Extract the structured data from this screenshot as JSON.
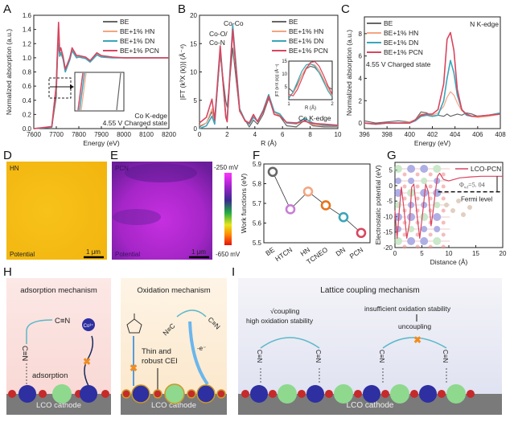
{
  "panel_labels": {
    "A": "A",
    "B": "B",
    "C": "C",
    "D": "D",
    "E": "E",
    "F": "F",
    "G": "G",
    "H": "H",
    "I": "I"
  },
  "chart_data": [
    {
      "id": "A",
      "type": "line",
      "xlabel": "Energy (eV)",
      "ylabel": "Normalized absorption (a.u.)",
      "xlim": [
        7600,
        8200
      ],
      "ylim": [
        0,
        1.6
      ],
      "xticks": [
        7600,
        7700,
        7800,
        7900,
        8000,
        8100,
        8200
      ],
      "yticks": [
        0.0,
        0.2,
        0.4,
        0.6,
        0.8,
        1.0,
        1.2,
        1.4,
        1.6
      ],
      "annotations": [
        "Co K-edge",
        "4.55 V Charged state"
      ],
      "legend_position": "top-right",
      "x": [
        7600,
        7680,
        7700,
        7705,
        7710,
        7715,
        7720,
        7730,
        7740,
        7760,
        7770,
        7790,
        7800,
        7830,
        7850,
        7880,
        7900,
        7950,
        8000,
        8100,
        8200
      ],
      "series": [
        {
          "name": "BE",
          "color": "#666666",
          "values": [
            0,
            0.02,
            0.45,
            0.95,
            1.25,
            1.02,
            1.06,
            1.0,
            0.83,
            0.98,
            1.1,
            1.01,
            1.02,
            1.0,
            0.95,
            1.05,
            1.02,
            1.0,
            1.0,
            1.0,
            1.0
          ]
        },
        {
          "name": "BE+1% HN",
          "color": "#f4a582",
          "values": [
            0,
            0.02,
            0.55,
            1.05,
            1.35,
            1.05,
            1.08,
            1.0,
            0.82,
            0.99,
            1.12,
            1.02,
            1.02,
            1.0,
            0.95,
            1.06,
            1.02,
            1.0,
            1.0,
            1.0,
            1.0
          ]
        },
        {
          "name": "BE+1% DN",
          "color": "#3aa6b9",
          "values": [
            0,
            0.02,
            0.6,
            1.05,
            1.2,
            1.04,
            1.07,
            0.98,
            0.8,
            0.97,
            1.1,
            1.0,
            1.01,
            0.99,
            0.94,
            1.04,
            1.01,
            1.0,
            1.0,
            1.0,
            1.0
          ]
        },
        {
          "name": "BE+1% PCN",
          "color": "#d9455f",
          "values": [
            0,
            0.03,
            0.62,
            1.1,
            1.5,
            1.08,
            1.14,
            1.02,
            0.84,
            1.0,
            1.14,
            1.03,
            1.03,
            1.01,
            0.96,
            1.07,
            1.03,
            1.01,
            1.0,
            1.0,
            1.0
          ]
        }
      ]
    },
    {
      "id": "B",
      "type": "line",
      "xlabel": "R (Å)",
      "ylabel": "|FT (k³X (k))| (Å⁻⁴)",
      "xlim": [
        0,
        10
      ],
      "ylim": [
        0,
        20
      ],
      "xticks": [
        0,
        2,
        4,
        6,
        8,
        10
      ],
      "yticks": [
        0,
        5,
        10,
        15,
        20
      ],
      "annotations": [
        "Co-Co",
        "Co-O/",
        "Co-N",
        "Co K-edge"
      ],
      "legend_position": "top-right",
      "x": [
        0,
        0.5,
        0.9,
        1.1,
        1.5,
        1.9,
        2.0,
        2.4,
        2.9,
        3.3,
        3.6,
        3.9,
        4.2,
        4.6,
        5.0,
        5.4,
        5.8,
        6.3,
        7.0,
        7.6,
        8.2,
        9,
        10
      ],
      "series": [
        {
          "name": "BE",
          "color": "#666666",
          "values": [
            0.3,
            1,
            3,
            1.2,
            13,
            4.8,
            3.8,
            14.2,
            3,
            1.5,
            0.3,
            1.5,
            0.8,
            2.5,
            5.3,
            3,
            2.2,
            0.5,
            0.3,
            1.5,
            0.5,
            0.3,
            0.3
          ]
        },
        {
          "name": "BE+1% HN",
          "color": "#f4a582",
          "values": [
            0.5,
            1,
            3.5,
            1,
            13.5,
            2.5,
            2,
            17,
            3,
            1.5,
            1,
            2.2,
            1.2,
            3,
            5.6,
            2.8,
            2.4,
            1,
            0.8,
            1.4,
            0.7,
            0.5,
            0.4
          ]
        },
        {
          "name": "BE+1% DN",
          "color": "#3aa6b9",
          "values": [
            0,
            0.5,
            2.2,
            0.8,
            14,
            2.2,
            1.5,
            18.3,
            3.5,
            1.4,
            0.8,
            2,
            1.3,
            3.2,
            6,
            3,
            2.6,
            1,
            0.9,
            1.8,
            1,
            0.6,
            0.5
          ]
        },
        {
          "name": "BE+1% PCN",
          "color": "#d9455f",
          "values": [
            1,
            2,
            5.2,
            1.5,
            14.6,
            2,
            1.2,
            17.5,
            3.2,
            1.3,
            1,
            2.5,
            1.2,
            3,
            5.7,
            2.5,
            2.2,
            1.1,
            1,
            1.3,
            0.9,
            0.8,
            0.6
          ]
        }
      ],
      "inset": {
        "xlabel": "R (Å)",
        "ylabel": "|FT (k³X (k))| (Å⁻⁴)",
        "xlim": [
          1,
          2
        ],
        "ylim": [
          0,
          15
        ],
        "xticks": [
          1,
          2
        ],
        "yticks": [
          5,
          10,
          15
        ],
        "x": [
          1,
          1.1,
          1.2,
          1.3,
          1.4,
          1.5,
          1.6,
          1.7,
          1.8,
          1.9,
          2
        ],
        "series": [
          {
            "name": "BE",
            "color": "#666666",
            "values": [
              4.5,
              3,
              6,
              9.5,
              12,
              13,
              12.5,
              10.5,
              7.5,
              5,
              4
            ]
          },
          {
            "name": "BE+1% HN",
            "color": "#f4a582",
            "values": [
              1.5,
              2.5,
              5.5,
              9.5,
              12.5,
              13.8,
              13.5,
              11.5,
              8,
              4.5,
              1.5
            ]
          },
          {
            "name": "BE+1% DN",
            "color": "#3aa6b9",
            "values": [
              0.5,
              3,
              7,
              11,
              13.5,
              14,
              13,
              10.5,
              7,
              3.5,
              1
            ]
          },
          {
            "name": "BE+1% PCN",
            "color": "#d9455f",
            "values": [
              2,
              1.5,
              4,
              8,
              12,
              14.5,
              14.8,
              13,
              9.5,
              5.5,
              2
            ]
          }
        ]
      }
    },
    {
      "id": "C",
      "type": "line",
      "xlabel": "Energy (eV)",
      "ylabel": "Normalized absorption (a.u.)",
      "xlim": [
        396,
        408
      ],
      "ylim": [
        -0.5,
        9.5
      ],
      "xticks": [
        396,
        398,
        400,
        402,
        404,
        406,
        408
      ],
      "yticks": [
        0,
        2,
        4,
        6,
        8
      ],
      "annotations": [
        "N K-edge",
        "4.55 V Charged state"
      ],
      "legend_position": "top-left",
      "x": [
        396,
        397,
        398,
        399,
        400,
        400.5,
        401,
        401.5,
        402,
        402.5,
        403,
        403.3,
        403.6,
        403.9,
        404.2,
        404.6,
        405,
        405.5,
        406,
        407,
        408
      ],
      "series": [
        {
          "name": "BE",
          "color": "#666666",
          "values": [
            0.2,
            0,
            0.1,
            0.2,
            0.1,
            0.3,
            1.0,
            0.9,
            0.6,
            0.7,
            0.6,
            0.8,
            0.6,
            0.7,
            0.8,
            0.7,
            0.9,
            0.8,
            0.6,
            0.7,
            0.8
          ]
        },
        {
          "name": "BE+1% HN",
          "color": "#f4a582",
          "values": [
            0,
            -0.1,
            0,
            0,
            0.1,
            0.3,
            0.8,
            0.8,
            0.7,
            0.9,
            1.5,
            2.3,
            2.8,
            2.5,
            1.8,
            1.1,
            0.8,
            0.6,
            0.5,
            0.6,
            0.8
          ]
        },
        {
          "name": "BE+1% DN",
          "color": "#3aa6b9",
          "values": [
            0,
            -0.1,
            0,
            0,
            0,
            0.2,
            0.6,
            0.7,
            0.6,
            0.7,
            2.0,
            4.0,
            5.6,
            4.5,
            2.5,
            1.2,
            0.7,
            0.6,
            0.6,
            0.7,
            0.9
          ]
        },
        {
          "name": "BE+1% PCN",
          "color": "#d9455f",
          "values": [
            0,
            -0.1,
            0,
            0,
            0,
            0.3,
            0.7,
            0.8,
            0.8,
            1.2,
            3.5,
            7.5,
            8.1,
            6.5,
            3.0,
            1.2,
            0.8,
            0.6,
            0.6,
            0.7,
            0.8
          ]
        }
      ]
    },
    {
      "id": "F",
      "type": "scatter",
      "xlabel": "",
      "ylabel": "Work functions (eV)",
      "ylim": [
        5.5,
        5.9
      ],
      "yticks": [
        5.5,
        5.6,
        5.7,
        5.8,
        5.9
      ],
      "categories": [
        "BE",
        "HTCN",
        "HN",
        "TCNEO",
        "DN",
        "PCN"
      ],
      "values": [
        5.86,
        5.67,
        5.76,
        5.69,
        5.63,
        5.55
      ],
      "colors": [
        "#666666",
        "#c77dd6",
        "#f4a582",
        "#e8731a",
        "#3aa6b9",
        "#d9455f"
      ]
    },
    {
      "id": "G",
      "type": "line",
      "xlabel": "Distance (Å)",
      "ylabel": "Electrostatic potential (eV)",
      "xlim": [
        0,
        20
      ],
      "ylim": [
        -20,
        7.5
      ],
      "xticks": [
        0,
        5,
        10,
        15,
        20
      ],
      "yticks": [
        -20,
        -15,
        -10,
        -5,
        0,
        5
      ],
      "legend_position": "top-right",
      "annotations": [
        "Φ",
        "wf",
        "=5. 04",
        "Fermi level"
      ],
      "fermi_level": -2,
      "x": [
        0,
        0.4,
        0.8,
        1.2,
        1.7,
        2.2,
        2.7,
        3.1,
        3.5,
        4.0,
        4.6,
        5.2,
        5.7,
        6.2,
        6.7,
        7.1,
        7.5,
        7.9,
        8.3,
        9,
        10,
        11,
        12,
        14,
        16,
        18,
        20
      ],
      "series": [
        {
          "name": "LCO-PCN",
          "color": "#d9455f",
          "values": [
            -8,
            -17,
            -8,
            -0.5,
            -8,
            -17,
            -12,
            -0.5,
            0.5,
            -8,
            -17,
            -8,
            0.5,
            -2,
            -13,
            -8,
            -2,
            3,
            4,
            2,
            1.5,
            2,
            2.5,
            2.8,
            3,
            3,
            3
          ]
        }
      ]
    }
  ],
  "images": {
    "D": {
      "label": "HN",
      "caption": "Potential",
      "scale": "1 μm"
    },
    "E": {
      "label": "PCN",
      "caption": "Potential",
      "scale": "1 μm"
    },
    "colorbar": {
      "max": "-250 mV",
      "min": "-650 mV",
      "colors": [
        "#ff33ff",
        "#9a22c8",
        "#3a2a90",
        "#22aa44",
        "#e6e61a",
        "#ff8c00",
        "#e81010"
      ]
    }
  },
  "schematics": {
    "H1": {
      "title": "adsorption mechanism",
      "cn_top": "C≡N",
      "cn_vertical": "C≡N",
      "co_ion": "Co³⁺",
      "adsorption": "adsorption",
      "substrate": "LCO cathode",
      "bg": "#fbe3e0"
    },
    "H2": {
      "title": "Oxidation mechanism",
      "cei": "Thin and",
      "cei2": "robust CEI",
      "electron": "-e⁻",
      "nc_left": "N≡C",
      "cn_right": "C≡N",
      "substrate": "LCO cathode",
      "bg": "#fdf0dc"
    },
    "I": {
      "title": "Lattice coupling mechanism",
      "coupling": "√coupling",
      "high": "high oxidation stability",
      "insufficient": "insufficient oxidation stability",
      "uncoupling": "uncoupling",
      "cn": "C≡N",
      "substrate": "LCO cathode",
      "bg": "#e8e9f5"
    }
  }
}
